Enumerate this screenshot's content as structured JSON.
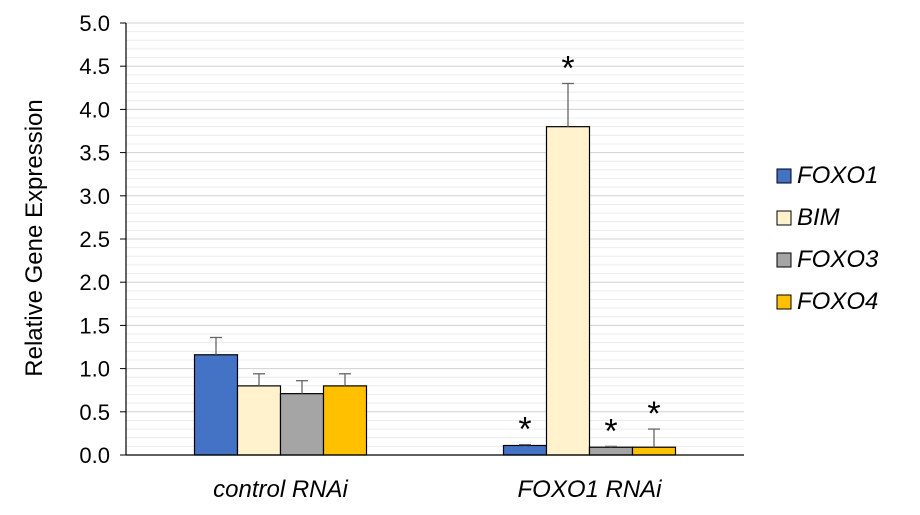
{
  "chart_data": {
    "type": "bar",
    "ylabel": "Relative Gene Expression",
    "ylim": [
      0,
      5.0
    ],
    "yticks": [
      "0.0",
      "0.5",
      "1.0",
      "1.5",
      "2.0",
      "2.5",
      "3.0",
      "3.5",
      "4.0",
      "4.5",
      "5.0"
    ],
    "grid": true,
    "legend_position": "right",
    "categories": [
      "control RNAi",
      "FOXO1 RNAi"
    ],
    "series": [
      {
        "name": "FOXO1",
        "color": "#4472C4",
        "values": [
          1.16,
          0.11
        ],
        "errors": [
          0.2,
          0.01
        ],
        "significant": [
          false,
          true
        ]
      },
      {
        "name": "BIM",
        "color": "#FFF2CC",
        "values": [
          0.8,
          3.8
        ],
        "errors": [
          0.14,
          0.5
        ],
        "significant": [
          false,
          true
        ]
      },
      {
        "name": "FOXO3",
        "color": "#A5A5A5",
        "values": [
          0.71,
          0.09
        ],
        "errors": [
          0.15,
          0.01
        ],
        "significant": [
          false,
          true
        ]
      },
      {
        "name": "FOXO4",
        "color": "#FFC000",
        "values": [
          0.8,
          0.09
        ],
        "errors": [
          0.14,
          0.21
        ],
        "significant": [
          false,
          true
        ]
      }
    ],
    "significance_marker": "*"
  }
}
